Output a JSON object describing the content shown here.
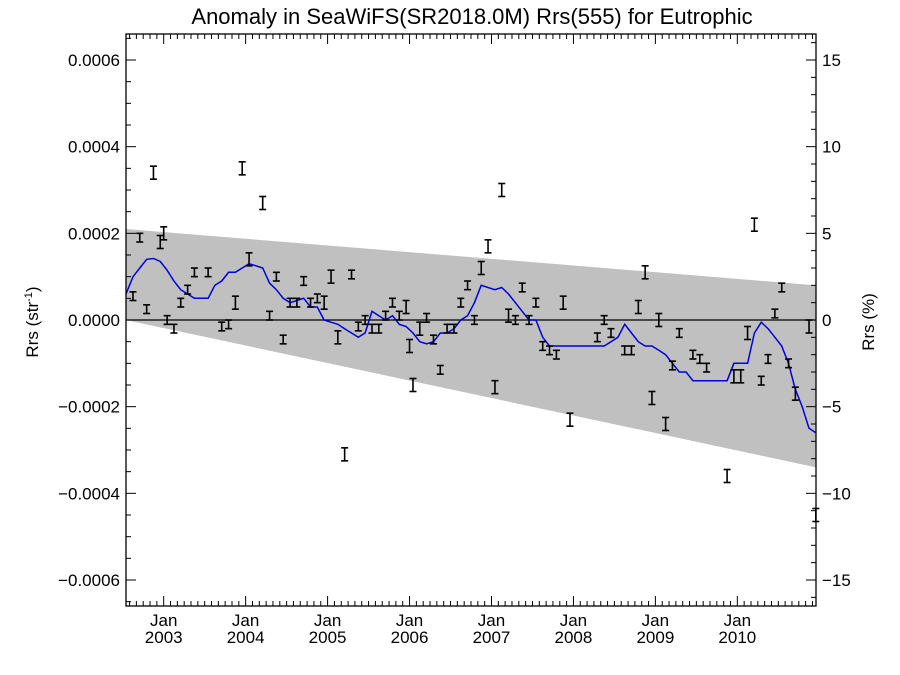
{
  "chart_data": {
    "type": "scatter",
    "title": "Anomaly in SeaWiFS(SR2018.0M) Rrs(555) for Eutrophic",
    "ylabel_main": "Rrs (str",
    "ylabel_sup": "-1",
    "ylabel_close": ")",
    "y2label": "Rrs (%)",
    "xlim": [
      2002.54,
      2010.96
    ],
    "ylim": [
      -0.00066,
      0.00066
    ],
    "y2lim": [
      -16.5,
      16.5
    ],
    "y_ticks": [
      {
        "v": 0.0006,
        "label": "0.0006"
      },
      {
        "v": 0.0004,
        "label": "0.0004"
      },
      {
        "v": 0.0002,
        "label": "0.0002"
      },
      {
        "v": 0.0,
        "label": "0.0000"
      },
      {
        "v": -0.0002,
        "label": "−0.0002"
      },
      {
        "v": -0.0004,
        "label": "−0.0004"
      },
      {
        "v": -0.0006,
        "label": "−0.0006"
      }
    ],
    "y2_ticks": [
      {
        "v": 15,
        "label": "15"
      },
      {
        "v": 10,
        "label": "10"
      },
      {
        "v": 5,
        "label": "5"
      },
      {
        "v": 0,
        "label": "0"
      },
      {
        "v": -5,
        "label": "−5"
      },
      {
        "v": -10,
        "label": "−10"
      },
      {
        "v": -15,
        "label": "−15"
      }
    ],
    "x_ticks": [
      {
        "v": 2003.0,
        "month": "Jan",
        "year": "2003"
      },
      {
        "v": 2004.0,
        "month": "Jan",
        "year": "2004"
      },
      {
        "v": 2005.0,
        "month": "Jan",
        "year": "2005"
      },
      {
        "v": 2006.0,
        "month": "Jan",
        "year": "2006"
      },
      {
        "v": 2007.0,
        "month": "Jan",
        "year": "2007"
      },
      {
        "v": 2008.0,
        "month": "Jan",
        "year": "2008"
      },
      {
        "v": 2009.0,
        "month": "Jan",
        "year": "2009"
      },
      {
        "v": 2010.0,
        "month": "Jan",
        "year": "2010"
      }
    ],
    "band": {
      "upper": [
        [
          2002.54,
          0.00021
        ],
        [
          2010.96,
          8e-05
        ]
      ],
      "lower": [
        [
          2002.54,
          0.0
        ],
        [
          2010.96,
          -0.00034
        ]
      ]
    },
    "points": [
      {
        "x": 2002.625,
        "y": 5.5e-05,
        "err": 1e-05
      },
      {
        "x": 2002.708,
        "y": 0.00019,
        "err": 1e-05
      },
      {
        "x": 2002.792,
        "y": 2.5e-05,
        "err": 1e-05
      },
      {
        "x": 2002.875,
        "y": 0.00034,
        "err": 1.5e-05
      },
      {
        "x": 2002.958,
        "y": 0.00018,
        "err": 1.5e-05
      },
      {
        "x": 2003.0,
        "y": 0.0002,
        "err": 1.5e-05
      },
      {
        "x": 2003.042,
        "y": 0.0,
        "err": 1e-05
      },
      {
        "x": 2003.125,
        "y": -2e-05,
        "err": 1e-05
      },
      {
        "x": 2003.208,
        "y": 4e-05,
        "err": 1e-05
      },
      {
        "x": 2003.292,
        "y": 7e-05,
        "err": 1e-05
      },
      {
        "x": 2003.375,
        "y": 0.00011,
        "err": 1e-05
      },
      {
        "x": 2003.542,
        "y": 0.00011,
        "err": 1e-05
      },
      {
        "x": 2003.708,
        "y": -1.5e-05,
        "err": 1e-05
      },
      {
        "x": 2003.792,
        "y": -1e-05,
        "err": 1e-05
      },
      {
        "x": 2003.875,
        "y": 4e-05,
        "err": 1.5e-05
      },
      {
        "x": 2003.958,
        "y": 0.00035,
        "err": 1.5e-05
      },
      {
        "x": 2004.042,
        "y": 0.00014,
        "err": 1.5e-05
      },
      {
        "x": 2004.208,
        "y": 0.00027,
        "err": 1.5e-05
      },
      {
        "x": 2004.292,
        "y": 1e-05,
        "err": 1e-05
      },
      {
        "x": 2004.375,
        "y": 0.0001,
        "err": 1e-05
      },
      {
        "x": 2004.458,
        "y": -4.5e-05,
        "err": 1e-05
      },
      {
        "x": 2004.542,
        "y": 4e-05,
        "err": 1e-05
      },
      {
        "x": 2004.625,
        "y": 4e-05,
        "err": 1e-05
      },
      {
        "x": 2004.708,
        "y": 9e-05,
        "err": 1e-05
      },
      {
        "x": 2004.792,
        "y": 4e-05,
        "err": 1e-05
      },
      {
        "x": 2004.875,
        "y": 5e-05,
        "err": 1e-05
      },
      {
        "x": 2004.958,
        "y": 4e-05,
        "err": 1.5e-05
      },
      {
        "x": 2005.042,
        "y": 0.0001,
        "err": 1.5e-05
      },
      {
        "x": 2005.125,
        "y": -4e-05,
        "err": 1.5e-05
      },
      {
        "x": 2005.208,
        "y": -0.00031,
        "err": 1.5e-05
      },
      {
        "x": 2005.292,
        "y": 0.000105,
        "err": 1e-05
      },
      {
        "x": 2005.375,
        "y": -1.5e-05,
        "err": 1e-05
      },
      {
        "x": 2005.458,
        "y": 0.0,
        "err": 1e-05
      },
      {
        "x": 2005.542,
        "y": -2e-05,
        "err": 1e-05
      },
      {
        "x": 2005.625,
        "y": -2e-05,
        "err": 1e-05
      },
      {
        "x": 2005.708,
        "y": 1e-05,
        "err": 1e-05
      },
      {
        "x": 2005.792,
        "y": 4e-05,
        "err": 1e-05
      },
      {
        "x": 2005.875,
        "y": 1e-05,
        "err": 1e-05
      },
      {
        "x": 2005.958,
        "y": 3e-05,
        "err": 1.5e-05
      },
      {
        "x": 2006.0,
        "y": -6e-05,
        "err": 1.5e-05
      },
      {
        "x": 2006.042,
        "y": -0.00015,
        "err": 1.5e-05
      },
      {
        "x": 2006.125,
        "y": -2e-05,
        "err": 1.5e-05
      },
      {
        "x": 2006.208,
        "y": 5e-06,
        "err": 1e-05
      },
      {
        "x": 2006.292,
        "y": -4.5e-05,
        "err": 1e-05
      },
      {
        "x": 2006.375,
        "y": -0.000115,
        "err": 1e-05
      },
      {
        "x": 2006.458,
        "y": -2e-05,
        "err": 1e-05
      },
      {
        "x": 2006.542,
        "y": -2e-05,
        "err": 1e-05
      },
      {
        "x": 2006.625,
        "y": 4e-05,
        "err": 1e-05
      },
      {
        "x": 2006.708,
        "y": 8e-05,
        "err": 1e-05
      },
      {
        "x": 2006.792,
        "y": 0.0,
        "err": 1e-05
      },
      {
        "x": 2006.875,
        "y": 0.00012,
        "err": 1.5e-05
      },
      {
        "x": 2006.958,
        "y": 0.00017,
        "err": 1.5e-05
      },
      {
        "x": 2007.042,
        "y": -0.000155,
        "err": 1.5e-05
      },
      {
        "x": 2007.125,
        "y": 0.0003,
        "err": 1.5e-05
      },
      {
        "x": 2007.208,
        "y": 1e-05,
        "err": 1.5e-05
      },
      {
        "x": 2007.292,
        "y": 0.0,
        "err": 1e-05
      },
      {
        "x": 2007.375,
        "y": 7.5e-05,
        "err": 1e-05
      },
      {
        "x": 2007.458,
        "y": 0.0,
        "err": 1e-05
      },
      {
        "x": 2007.542,
        "y": 4e-05,
        "err": 1e-05
      },
      {
        "x": 2007.625,
        "y": -6e-05,
        "err": 1e-05
      },
      {
        "x": 2007.708,
        "y": -7e-05,
        "err": 1e-05
      },
      {
        "x": 2007.792,
        "y": -8e-05,
        "err": 1e-05
      },
      {
        "x": 2007.875,
        "y": 4e-05,
        "err": 1.5e-05
      },
      {
        "x": 2007.958,
        "y": -0.00023,
        "err": 1.5e-05
      },
      {
        "x": 2008.292,
        "y": -4e-05,
        "err": 1e-05
      },
      {
        "x": 2008.375,
        "y": 0.0,
        "err": 1e-05
      },
      {
        "x": 2008.458,
        "y": -3e-05,
        "err": 1e-05
      },
      {
        "x": 2008.625,
        "y": -7e-05,
        "err": 1e-05
      },
      {
        "x": 2008.708,
        "y": -7e-05,
        "err": 1e-05
      },
      {
        "x": 2008.792,
        "y": 3e-05,
        "err": 1.5e-05
      },
      {
        "x": 2008.875,
        "y": 0.00011,
        "err": 1.5e-05
      },
      {
        "x": 2008.958,
        "y": -0.00018,
        "err": 1.5e-05
      },
      {
        "x": 2009.042,
        "y": 0.0,
        "err": 1.5e-05
      },
      {
        "x": 2009.125,
        "y": -0.00024,
        "err": 1.5e-05
      },
      {
        "x": 2009.208,
        "y": -0.000105,
        "err": 1e-05
      },
      {
        "x": 2009.292,
        "y": -3e-05,
        "err": 1e-05
      },
      {
        "x": 2009.458,
        "y": -8e-05,
        "err": 1e-05
      },
      {
        "x": 2009.542,
        "y": -9e-05,
        "err": 1e-05
      },
      {
        "x": 2009.625,
        "y": -0.00011,
        "err": 1e-05
      },
      {
        "x": 2009.875,
        "y": -0.00036,
        "err": 1.5e-05
      },
      {
        "x": 2009.958,
        "y": -0.00013,
        "err": 1.5e-05
      },
      {
        "x": 2010.042,
        "y": -0.00013,
        "err": 1.5e-05
      },
      {
        "x": 2010.125,
        "y": -3e-05,
        "err": 1.5e-05
      },
      {
        "x": 2010.208,
        "y": 0.00022,
        "err": 1.5e-05
      },
      {
        "x": 2010.292,
        "y": -0.00014,
        "err": 1e-05
      },
      {
        "x": 2010.375,
        "y": -9e-05,
        "err": 1e-05
      },
      {
        "x": 2010.458,
        "y": 1.5e-05,
        "err": 1e-05
      },
      {
        "x": 2010.542,
        "y": 7.5e-05,
        "err": 1e-05
      },
      {
        "x": 2010.625,
        "y": -0.0001,
        "err": 1e-05
      },
      {
        "x": 2010.708,
        "y": -0.00017,
        "err": 1.5e-05
      },
      {
        "x": 2010.875,
        "y": -1.5e-05,
        "err": 1.5e-05
      },
      {
        "x": 2010.958,
        "y": -0.00045,
        "err": 1.5e-05
      }
    ],
    "smooth": [
      [
        2002.54,
        6e-05
      ],
      [
        2002.625,
        0.0001
      ],
      [
        2002.708,
        0.00012
      ],
      [
        2002.792,
        0.00014
      ],
      [
        2002.875,
        0.000142
      ],
      [
        2002.958,
        0.000135
      ],
      [
        2003.042,
        0.000115
      ],
      [
        2003.125,
        9e-05
      ],
      [
        2003.208,
        7e-05
      ],
      [
        2003.292,
        6e-05
      ],
      [
        2003.375,
        5e-05
      ],
      [
        2003.458,
        5e-05
      ],
      [
        2003.542,
        5e-05
      ],
      [
        2003.625,
        8e-05
      ],
      [
        2003.708,
        9e-05
      ],
      [
        2003.792,
        0.00011
      ],
      [
        2003.875,
        0.00011
      ],
      [
        2003.958,
        0.00012
      ],
      [
        2004.042,
        0.00013
      ],
      [
        2004.125,
        0.000125
      ],
      [
        2004.208,
        0.00012
      ],
      [
        2004.292,
        8.5e-05
      ],
      [
        2004.375,
        7e-05
      ],
      [
        2004.458,
        5e-05
      ],
      [
        2004.542,
        4e-05
      ],
      [
        2004.625,
        4.5e-05
      ],
      [
        2004.708,
        5e-05
      ],
      [
        2004.792,
        3e-05
      ],
      [
        2004.875,
        3e-05
      ],
      [
        2004.958,
        0.0
      ],
      [
        2005.042,
        -5e-06
      ],
      [
        2005.125,
        -1e-05
      ],
      [
        2005.208,
        -2e-05
      ],
      [
        2005.292,
        -3e-05
      ],
      [
        2005.375,
        -4e-05
      ],
      [
        2005.458,
        -3e-05
      ],
      [
        2005.542,
        2e-05
      ],
      [
        2005.625,
        1e-05
      ],
      [
        2005.708,
        0.0
      ],
      [
        2005.792,
        1e-05
      ],
      [
        2005.875,
        -1e-05
      ],
      [
        2005.958,
        -1.5e-05
      ],
      [
        2006.042,
        -3e-05
      ],
      [
        2006.125,
        -5e-05
      ],
      [
        2006.208,
        -5.5e-05
      ],
      [
        2006.292,
        -5e-05
      ],
      [
        2006.375,
        -3e-05
      ],
      [
        2006.458,
        -3e-05
      ],
      [
        2006.542,
        -2e-05
      ],
      [
        2006.625,
        0.0
      ],
      [
        2006.708,
        1e-05
      ],
      [
        2006.792,
        4e-05
      ],
      [
        2006.875,
        8e-05
      ],
      [
        2006.958,
        7.5e-05
      ],
      [
        2007.042,
        7e-05
      ],
      [
        2007.125,
        7.5e-05
      ],
      [
        2007.208,
        6e-05
      ],
      [
        2007.292,
        4e-05
      ],
      [
        2007.375,
        2e-05
      ],
      [
        2007.458,
        0.0
      ],
      [
        2007.542,
        0.0
      ],
      [
        2007.625,
        -4e-05
      ],
      [
        2007.708,
        -6e-05
      ],
      [
        2007.792,
        -6e-05
      ],
      [
        2007.875,
        -6e-05
      ],
      [
        2007.958,
        -6e-05
      ],
      [
        2008.042,
        -6e-05
      ],
      [
        2008.125,
        -6e-05
      ],
      [
        2008.208,
        -6e-05
      ],
      [
        2008.292,
        -6e-05
      ],
      [
        2008.375,
        -6e-05
      ],
      [
        2008.458,
        -5e-05
      ],
      [
        2008.542,
        -4e-05
      ],
      [
        2008.625,
        -1e-05
      ],
      [
        2008.708,
        -3e-05
      ],
      [
        2008.792,
        -5e-05
      ],
      [
        2008.875,
        -6e-05
      ],
      [
        2008.958,
        -6e-05
      ],
      [
        2009.042,
        -7e-05
      ],
      [
        2009.125,
        -8e-05
      ],
      [
        2009.208,
        -0.0001
      ],
      [
        2009.292,
        -0.00012
      ],
      [
        2009.375,
        -0.00012
      ],
      [
        2009.458,
        -0.00014
      ],
      [
        2009.542,
        -0.00014
      ],
      [
        2009.625,
        -0.00014
      ],
      [
        2009.708,
        -0.00014
      ],
      [
        2009.792,
        -0.00014
      ],
      [
        2009.875,
        -0.00014
      ],
      [
        2009.958,
        -0.0001
      ],
      [
        2010.042,
        -0.0001
      ],
      [
        2010.125,
        -0.0001
      ],
      [
        2010.208,
        -3e-05
      ],
      [
        2010.292,
        -5e-06
      ],
      [
        2010.375,
        -2e-05
      ],
      [
        2010.458,
        -4e-05
      ],
      [
        2010.542,
        -6e-05
      ],
      [
        2010.625,
        -0.0001
      ],
      [
        2010.708,
        -0.00016
      ],
      [
        2010.792,
        -0.0002
      ],
      [
        2010.875,
        -0.00025
      ],
      [
        2010.958,
        -0.00026
      ]
    ],
    "colors": {
      "band": "#c0c0c0",
      "smooth": "#0000dd",
      "points": "#000000",
      "axis": "#000000",
      "background": "#ffffff"
    },
    "grid": false,
    "legend": "none"
  }
}
